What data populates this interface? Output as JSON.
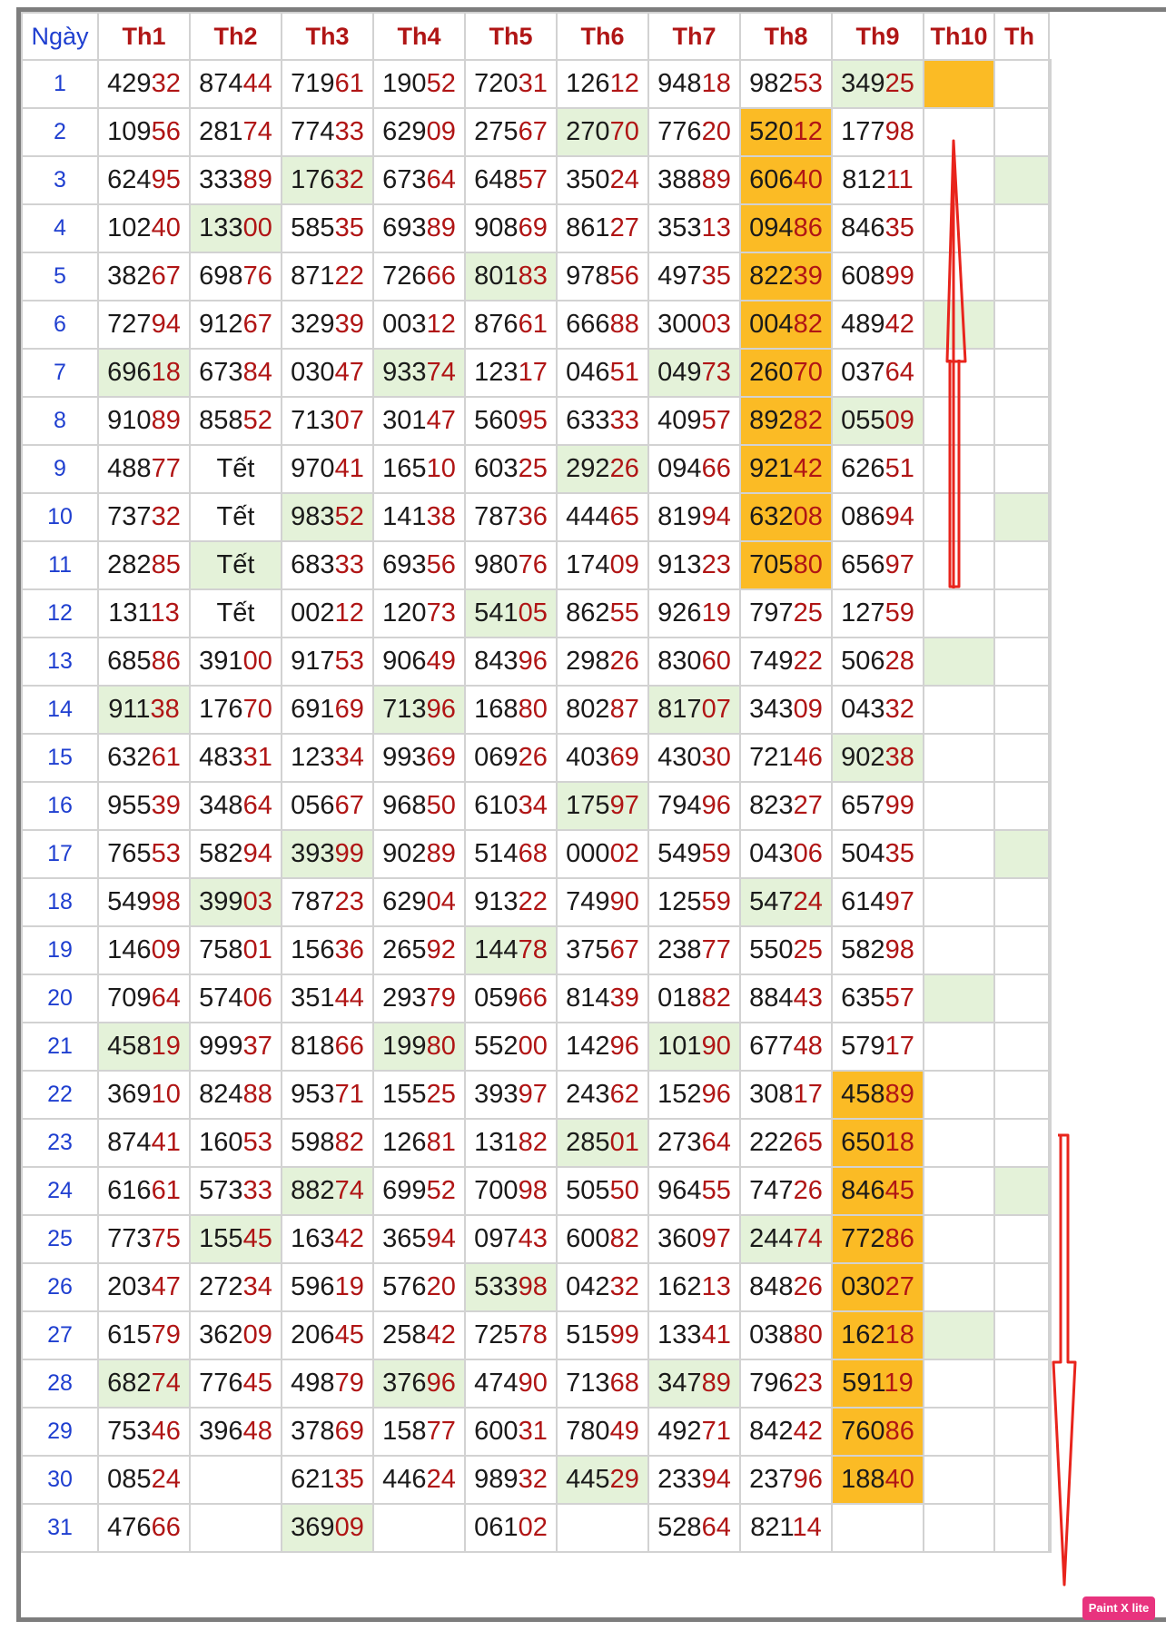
{
  "header": {
    "day_label": "Ngày",
    "months": [
      "Th1",
      "Th2",
      "Th3",
      "Th4",
      "Th5",
      "Th6",
      "Th7",
      "Th8",
      "Th9",
      "Th10",
      "Th"
    ]
  },
  "colors": {
    "green": "#e4f2d9",
    "orange": "#fbbb25",
    "red": "#b01515",
    "blue": "#1f3fd0",
    "arrow": "#e8241c"
  },
  "rows": [
    {
      "day": "1",
      "cells": [
        "42932",
        "87444",
        "71961",
        "19052",
        "72031",
        "12612",
        "94818",
        "98253",
        "34925",
        "",
        ""
      ],
      "hl": [
        0,
        0,
        0,
        0,
        0,
        0,
        0,
        0,
        1,
        2,
        0
      ]
    },
    {
      "day": "2",
      "cells": [
        "10956",
        "28174",
        "77433",
        "62909",
        "27567",
        "27070",
        "77620",
        "52012",
        "17798",
        "",
        ""
      ],
      "hl": [
        0,
        0,
        0,
        0,
        0,
        1,
        0,
        2,
        0,
        0,
        0
      ]
    },
    {
      "day": "3",
      "cells": [
        "62495",
        "33389",
        "17632",
        "67364",
        "64857",
        "35024",
        "38889",
        "60640",
        "81211",
        "",
        ""
      ],
      "hl": [
        0,
        0,
        1,
        0,
        0,
        0,
        0,
        2,
        0,
        0,
        1
      ]
    },
    {
      "day": "4",
      "cells": [
        "10240",
        "13300",
        "58535",
        "69389",
        "90869",
        "86127",
        "35313",
        "09486",
        "84635",
        "",
        ""
      ],
      "hl": [
        0,
        1,
        0,
        0,
        0,
        0,
        0,
        2,
        0,
        0,
        0
      ]
    },
    {
      "day": "5",
      "cells": [
        "38267",
        "69876",
        "87122",
        "72666",
        "80183",
        "97856",
        "49735",
        "82239",
        "60899",
        "",
        ""
      ],
      "hl": [
        0,
        0,
        0,
        0,
        1,
        0,
        0,
        2,
        0,
        0,
        0
      ]
    },
    {
      "day": "6",
      "cells": [
        "72794",
        "91267",
        "32939",
        "00312",
        "87661",
        "66688",
        "30003",
        "00482",
        "48942",
        "",
        ""
      ],
      "hl": [
        0,
        0,
        0,
        0,
        0,
        0,
        0,
        2,
        0,
        1,
        0
      ]
    },
    {
      "day": "7",
      "cells": [
        "69618",
        "67384",
        "03047",
        "93374",
        "12317",
        "04651",
        "04973",
        "26070",
        "03764",
        "",
        ""
      ],
      "hl": [
        1,
        0,
        0,
        1,
        0,
        0,
        1,
        2,
        0,
        0,
        0
      ]
    },
    {
      "day": "8",
      "cells": [
        "91089",
        "85852",
        "71307",
        "30147",
        "56095",
        "63333",
        "40957",
        "89282",
        "05509",
        "",
        ""
      ],
      "hl": [
        0,
        0,
        0,
        0,
        0,
        0,
        0,
        2,
        1,
        0,
        0
      ]
    },
    {
      "day": "9",
      "cells": [
        "48877",
        "Tết",
        "97041",
        "16510",
        "60325",
        "29226",
        "09466",
        "92142",
        "62651",
        "",
        ""
      ],
      "hl": [
        0,
        0,
        0,
        0,
        0,
        1,
        0,
        2,
        0,
        0,
        0
      ]
    },
    {
      "day": "10",
      "cells": [
        "73732",
        "Tết",
        "98352",
        "14138",
        "78736",
        "44465",
        "81994",
        "63208",
        "08694",
        "",
        ""
      ],
      "hl": [
        0,
        0,
        1,
        0,
        0,
        0,
        0,
        2,
        0,
        0,
        1
      ]
    },
    {
      "day": "11",
      "cells": [
        "28285",
        "Tết",
        "68333",
        "69356",
        "98076",
        "17409",
        "91323",
        "70580",
        "65697",
        "",
        ""
      ],
      "hl": [
        0,
        1,
        0,
        0,
        0,
        0,
        0,
        2,
        0,
        0,
        0
      ]
    },
    {
      "day": "12",
      "cells": [
        "13113",
        "Tết",
        "00212",
        "12073",
        "54105",
        "86255",
        "92619",
        "79725",
        "12759",
        "",
        ""
      ],
      "hl": [
        0,
        0,
        0,
        0,
        1,
        0,
        0,
        0,
        0,
        0,
        0
      ]
    },
    {
      "day": "13",
      "cells": [
        "68586",
        "39100",
        "91753",
        "90649",
        "84396",
        "29826",
        "83060",
        "74922",
        "50628",
        "",
        ""
      ],
      "hl": [
        0,
        0,
        0,
        0,
        0,
        0,
        0,
        0,
        0,
        1,
        0
      ]
    },
    {
      "day": "14",
      "cells": [
        "91138",
        "17670",
        "69169",
        "71396",
        "16880",
        "80287",
        "81707",
        "34309",
        "04332",
        "",
        ""
      ],
      "hl": [
        1,
        0,
        0,
        1,
        0,
        0,
        1,
        0,
        0,
        0,
        0
      ]
    },
    {
      "day": "15",
      "cells": [
        "63261",
        "48331",
        "12334",
        "99369",
        "06926",
        "40369",
        "43030",
        "72146",
        "90238",
        "",
        ""
      ],
      "hl": [
        0,
        0,
        0,
        0,
        0,
        0,
        0,
        0,
        1,
        0,
        0
      ]
    },
    {
      "day": "16",
      "cells": [
        "95539",
        "34864",
        "05667",
        "96850",
        "61034",
        "17597",
        "79496",
        "82327",
        "65799",
        "",
        ""
      ],
      "hl": [
        0,
        0,
        0,
        0,
        0,
        1,
        0,
        0,
        0,
        0,
        0
      ]
    },
    {
      "day": "17",
      "cells": [
        "76553",
        "58294",
        "39399",
        "90289",
        "51468",
        "00002",
        "54959",
        "04306",
        "50435",
        "",
        ""
      ],
      "hl": [
        0,
        0,
        1,
        0,
        0,
        0,
        0,
        0,
        0,
        0,
        1
      ]
    },
    {
      "day": "18",
      "cells": [
        "54998",
        "39903",
        "78723",
        "62904",
        "91322",
        "74990",
        "12559",
        "54724",
        "61497",
        "",
        ""
      ],
      "hl": [
        0,
        1,
        0,
        0,
        0,
        0,
        0,
        1,
        0,
        0,
        0
      ]
    },
    {
      "day": "19",
      "cells": [
        "14609",
        "75801",
        "15636",
        "26592",
        "14478",
        "37567",
        "23877",
        "55025",
        "58298",
        "",
        ""
      ],
      "hl": [
        0,
        0,
        0,
        0,
        1,
        0,
        0,
        0,
        0,
        0,
        0
      ]
    },
    {
      "day": "20",
      "cells": [
        "70964",
        "57406",
        "35144",
        "29379",
        "05966",
        "81439",
        "01882",
        "88443",
        "63557",
        "",
        ""
      ],
      "hl": [
        0,
        0,
        0,
        0,
        0,
        0,
        0,
        0,
        0,
        1,
        0
      ]
    },
    {
      "day": "21",
      "cells": [
        "45819",
        "99937",
        "81866",
        "19980",
        "55200",
        "14296",
        "10190",
        "67748",
        "57917",
        "",
        ""
      ],
      "hl": [
        1,
        0,
        0,
        1,
        0,
        0,
        1,
        0,
        0,
        0,
        0
      ]
    },
    {
      "day": "22",
      "cells": [
        "36910",
        "82488",
        "95371",
        "15525",
        "39397",
        "24362",
        "15296",
        "30817",
        "45889",
        "",
        ""
      ],
      "hl": [
        0,
        0,
        0,
        0,
        0,
        0,
        0,
        0,
        2,
        0,
        0
      ]
    },
    {
      "day": "23",
      "cells": [
        "87441",
        "16053",
        "59882",
        "12681",
        "13182",
        "28501",
        "27364",
        "22265",
        "65018",
        "",
        ""
      ],
      "hl": [
        0,
        0,
        0,
        0,
        0,
        1,
        0,
        0,
        2,
        0,
        0
      ]
    },
    {
      "day": "24",
      "cells": [
        "61661",
        "57333",
        "88274",
        "69952",
        "70098",
        "50550",
        "96455",
        "74726",
        "84645",
        "",
        ""
      ],
      "hl": [
        0,
        0,
        1,
        0,
        0,
        0,
        0,
        0,
        2,
        0,
        1
      ]
    },
    {
      "day": "25",
      "cells": [
        "77375",
        "15545",
        "16342",
        "36594",
        "09743",
        "60082",
        "36097",
        "24474",
        "77286",
        "",
        ""
      ],
      "hl": [
        0,
        1,
        0,
        0,
        0,
        0,
        0,
        1,
        2,
        0,
        0
      ]
    },
    {
      "day": "26",
      "cells": [
        "20347",
        "27234",
        "59619",
        "57620",
        "53398",
        "04232",
        "16213",
        "84826",
        "03027",
        "",
        ""
      ],
      "hl": [
        0,
        0,
        0,
        0,
        1,
        0,
        0,
        0,
        2,
        0,
        0
      ]
    },
    {
      "day": "27",
      "cells": [
        "61579",
        "36209",
        "20645",
        "25842",
        "72578",
        "51599",
        "13341",
        "03880",
        "16218",
        "",
        ""
      ],
      "hl": [
        0,
        0,
        0,
        0,
        0,
        0,
        0,
        0,
        2,
        1,
        0
      ]
    },
    {
      "day": "28",
      "cells": [
        "68274",
        "77645",
        "49879",
        "37696",
        "47490",
        "71368",
        "34789",
        "79623",
        "59119",
        "",
        ""
      ],
      "hl": [
        1,
        0,
        0,
        1,
        0,
        0,
        1,
        0,
        2,
        0,
        0
      ]
    },
    {
      "day": "29",
      "cells": [
        "75346",
        "39648",
        "37869",
        "15877",
        "60031",
        "78049",
        "49271",
        "84242",
        "76086",
        "",
        ""
      ],
      "hl": [
        0,
        0,
        0,
        0,
        0,
        0,
        0,
        0,
        2,
        0,
        0
      ]
    },
    {
      "day": "30",
      "cells": [
        "08524",
        "",
        "62135",
        "44624",
        "98932",
        "44529",
        "23394",
        "23796",
        "18840",
        "",
        ""
      ],
      "hl": [
        0,
        0,
        0,
        0,
        0,
        1,
        0,
        0,
        2,
        0,
        0
      ]
    },
    {
      "day": "31",
      "cells": [
        "47666",
        "",
        "36909",
        "",
        "06102",
        "",
        "52864",
        "82114",
        "",
        "",
        ""
      ],
      "hl": [
        0,
        0,
        1,
        0,
        0,
        0,
        0,
        0,
        0,
        0,
        0
      ]
    }
  ],
  "watermark": "Paint X lite"
}
